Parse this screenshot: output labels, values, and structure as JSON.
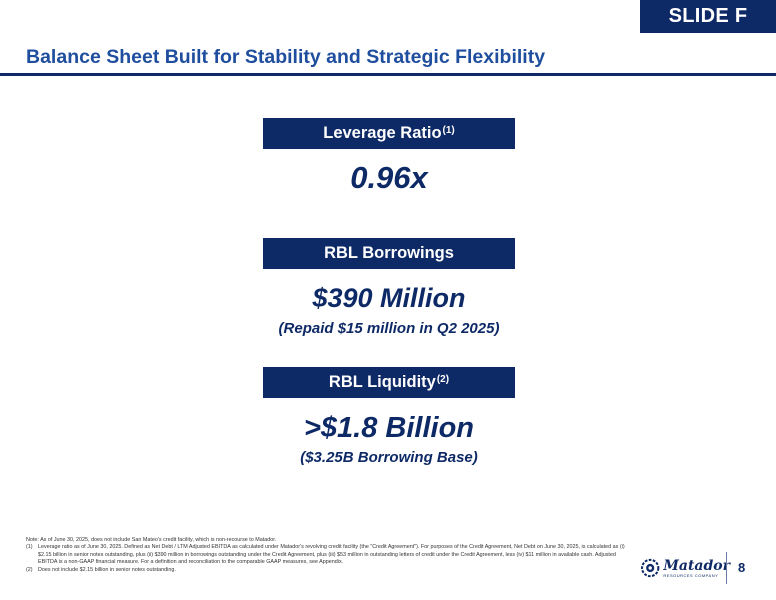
{
  "slide_tag": "SLIDE F",
  "title": "Balance Sheet Built for Stability and Strategic Flexibility",
  "sections": [
    {
      "header": "Leverage Ratio",
      "header_sup": "(1)",
      "value": "0.96x",
      "sub_value": ""
    },
    {
      "header": "RBL Borrowings",
      "header_sup": "",
      "value": "$390 Million",
      "sub_value": "(Repaid $15 million in Q2 2025)"
    },
    {
      "header": "RBL Liquidity",
      "header_sup": "(2)",
      "value": ">$1.8 Billion",
      "sub_value": "($3.25B Borrowing Base)"
    }
  ],
  "notes": {
    "intro": "Note: As of June 30, 2025, does not include San Mateo's credit facility, which is non-recourse to Matador.",
    "items": [
      {
        "num": "(1)",
        "text": "Leverage ratio as of June 30, 2025. Defined as Net Debt / LTM Adjusted EBITDA as calculated under Matador's revolving credit facility (the \"Credit Agreement\"). For purposes of the Credit Agreement, Net Debt on June 30, 2025, is calculated as (i) $2.15 billion in senior notes outstanding, plus (ii) $390 million in borrowings outstanding under the Credit Agreement, plus (iii) $53 million in outstanding letters of credit under the Credit Agreement, less (iv) $11 million in available cash. Adjusted EBITDA is a non-GAAP financial measure. For a definition and reconciliation to the comparable GAAP measures, see Appendix."
      },
      {
        "num": "(2)",
        "text": "Does not include $2.15 billion in senior notes outstanding."
      }
    ]
  },
  "logo": {
    "word": "Matador",
    "subtitle": "RESOURCES COMPANY"
  },
  "page_number": "8",
  "colors": {
    "navy": "#0e2a66",
    "title_blue": "#1f4e9e",
    "white": "#ffffff"
  }
}
